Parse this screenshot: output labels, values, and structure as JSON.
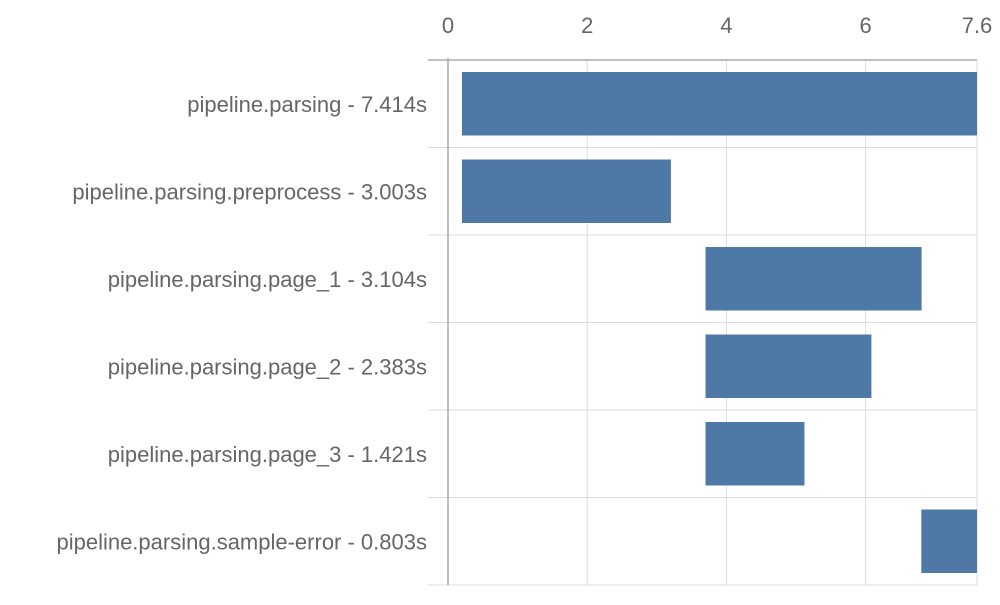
{
  "chart_data": {
    "type": "bar",
    "subtype": "gantt",
    "title": "",
    "xlabel": "",
    "ylabel": "",
    "xlim": [
      0,
      7.6
    ],
    "x_ticks": [
      {
        "value": 0,
        "label": "0"
      },
      {
        "value": 2,
        "label": "2"
      },
      {
        "value": 4,
        "label": "4"
      },
      {
        "value": 6,
        "label": "6"
      },
      {
        "value": 7.6,
        "label": "7.6"
      }
    ],
    "axis_position": "top",
    "grid": true,
    "legend": "none",
    "bar_color": "#4e79a7",
    "rows": [
      {
        "label": "pipeline.parsing - 7.414s",
        "start": 0.2,
        "duration": 7.414
      },
      {
        "label": "pipeline.parsing.preprocess - 3.003s",
        "start": 0.2,
        "duration": 3.003
      },
      {
        "label": "pipeline.parsing.page_1 - 3.104s",
        "start": 3.7,
        "duration": 3.104
      },
      {
        "label": "pipeline.parsing.page_2 - 2.383s",
        "start": 3.7,
        "duration": 2.383
      },
      {
        "label": "pipeline.parsing.page_3 - 1.421s",
        "start": 3.7,
        "duration": 1.421
      },
      {
        "label": "pipeline.parsing.sample-error - 0.803s",
        "start": 6.8,
        "duration": 0.803
      }
    ]
  }
}
